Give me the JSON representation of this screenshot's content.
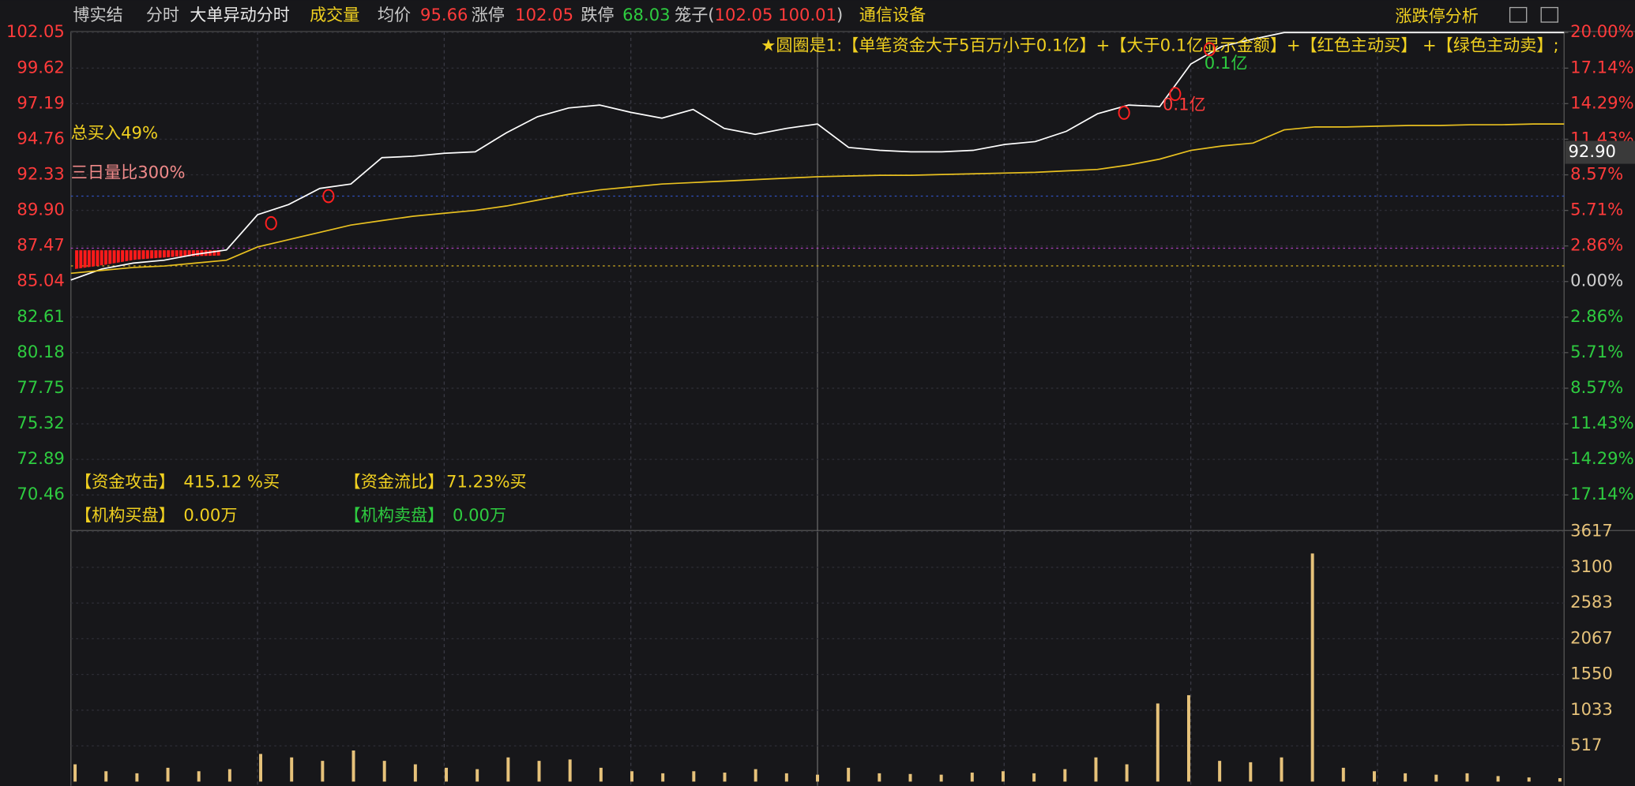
{
  "header": {
    "stock": "博实结",
    "tab1": "分时",
    "tab2": "大单异动分时",
    "tab3": "成交量",
    "avg_label": "均价",
    "avg_value": "95.66",
    "limit_up_label": "涨停",
    "limit_up": "102.05",
    "limit_down_label": "跌停",
    "limit_down": "68.03",
    "cage_open": "笼子(",
    "cage_values": "102.05 100.01",
    "cage_close": ")",
    "sector": "通信设备",
    "analysis": "涨跌停分析",
    "cursor_label": "92.90"
  },
  "legend_note": "★圆圈是1:【单笔资金大于5百万小于0.1亿】+【大于0.1亿显示金额】+【红色主动买】 +【绿色主动卖】;",
  "annotations": {
    "buy_total": "总买入49%",
    "volume_ratio": "三日量比300%",
    "big_red": "0.1亿",
    "big_green": "0.1亿"
  },
  "stats": [
    {
      "label": "【资金攻击】",
      "value": "415.12 %买"
    },
    {
      "label": "【资金流比】",
      "value": "71.23%买"
    },
    {
      "label": "【机构买盘】",
      "value": "0.00万"
    },
    {
      "label": "【机构卖盘】",
      "value": "0.00万"
    }
  ],
  "chart_data": [
    {
      "type": "line",
      "x": [
        0,
        1,
        2,
        3,
        4,
        5,
        6,
        7,
        8,
        9,
        10,
        11,
        12,
        13,
        14,
        15,
        16,
        17,
        18,
        19,
        20,
        21,
        22,
        23,
        24,
        25,
        26,
        27,
        28,
        29,
        30,
        31,
        32,
        33,
        34,
        35,
        36,
        37,
        38,
        39,
        40,
        41,
        42,
        43,
        44,
        45,
        46,
        47,
        48
      ],
      "series": [
        {
          "color": "#ffffff",
          "values": [
            85.15,
            85.9,
            86.3,
            86.5,
            86.9,
            87.2,
            89.6,
            90.3,
            91.4,
            91.7,
            93.5,
            93.6,
            93.8,
            93.9,
            95.2,
            96.3,
            96.9,
            97.1,
            96.6,
            96.2,
            96.8,
            95.5,
            95.1,
            95.5,
            95.8,
            94.2,
            94.0,
            93.9,
            93.9,
            94.0,
            94.4,
            94.6,
            95.3,
            96.5,
            97.1,
            97.0,
            99.9,
            101.1,
            101.6,
            102.05,
            102.05,
            102.05,
            102.05,
            102.05,
            102.05,
            102.05,
            102.05,
            102.05,
            102.05
          ]
        },
        {
          "color": "#e8c020",
          "values": [
            85.6,
            85.8,
            86.0,
            86.1,
            86.3,
            86.5,
            87.4,
            87.9,
            88.4,
            88.9,
            89.2,
            89.5,
            89.7,
            89.9,
            90.2,
            90.6,
            91.0,
            91.3,
            91.5,
            91.7,
            91.8,
            91.9,
            92.0,
            92.1,
            92.2,
            92.25,
            92.3,
            92.3,
            92.35,
            92.4,
            92.45,
            92.5,
            92.6,
            92.7,
            93.0,
            93.4,
            94.0,
            94.3,
            94.5,
            95.4,
            95.6,
            95.6,
            95.65,
            95.7,
            95.7,
            95.75,
            95.75,
            95.8,
            95.8
          ]
        }
      ],
      "ylim": [
        68.03,
        102.05
      ],
      "yticks": [
        102.05,
        99.62,
        97.19,
        94.76,
        92.33,
        {
          "value": 89.9,
          "label": "89.90"
        },
        87.47,
        85.04,
        82.61,
        80.18,
        77.75,
        75.32,
        72.89,
        70.46
      ],
      "y2lim": [
        -20,
        20
      ],
      "y2ticks": [
        {
          "value": 20,
          "label": "20.00%"
        },
        {
          "value": 17.14,
          "label": "17.14%"
        },
        {
          "value": 14.29,
          "label": "14.29%"
        },
        {
          "value": 11.43,
          "label": "11.43%"
        },
        {
          "value": 8.57,
          "label": "8.57%"
        },
        {
          "value": 5.71,
          "label": "5.71%"
        },
        {
          "value": 2.86,
          "label": "2.86%"
        },
        {
          "value": 0,
          "label": "0.00%"
        },
        {
          "value": -2.86,
          "label": "2.86%"
        },
        {
          "value": -5.71,
          "label": "5.71%"
        },
        {
          "value": -8.57,
          "label": "8.57%"
        },
        {
          "value": -11.43,
          "label": "11.43%"
        },
        {
          "value": -14.29,
          "label": "14.29%"
        },
        {
          "value": -17.14,
          "label": "17.14%"
        }
      ],
      "grid": true
    },
    {
      "type": "bar",
      "x": [
        0,
        1,
        2,
        3,
        4,
        5,
        6,
        7,
        8,
        9,
        10,
        11,
        12,
        13,
        14,
        15,
        16,
        17,
        18,
        19,
        20,
        21,
        22,
        23,
        24,
        25,
        26,
        27,
        28,
        29,
        30,
        31,
        32,
        33,
        34,
        35,
        36,
        37,
        38,
        39,
        40,
        41,
        42,
        43,
        44,
        45,
        46,
        47,
        48
      ],
      "values": [
        250,
        150,
        120,
        200,
        150,
        180,
        400,
        350,
        300,
        450,
        300,
        250,
        200,
        180,
        350,
        300,
        320,
        200,
        150,
        120,
        150,
        130,
        180,
        120,
        100,
        200,
        120,
        110,
        100,
        130,
        150,
        120,
        180,
        350,
        250,
        1130,
        1250,
        300,
        280,
        350,
        3300,
        200,
        150,
        120,
        100,
        120,
        80,
        60,
        50
      ],
      "color": "#e6c27a",
      "ylim": [
        0,
        3617
      ],
      "yticks": [
        517,
        1033,
        1550,
        2067,
        2583,
        3100,
        3617
      ],
      "grid": true
    }
  ]
}
